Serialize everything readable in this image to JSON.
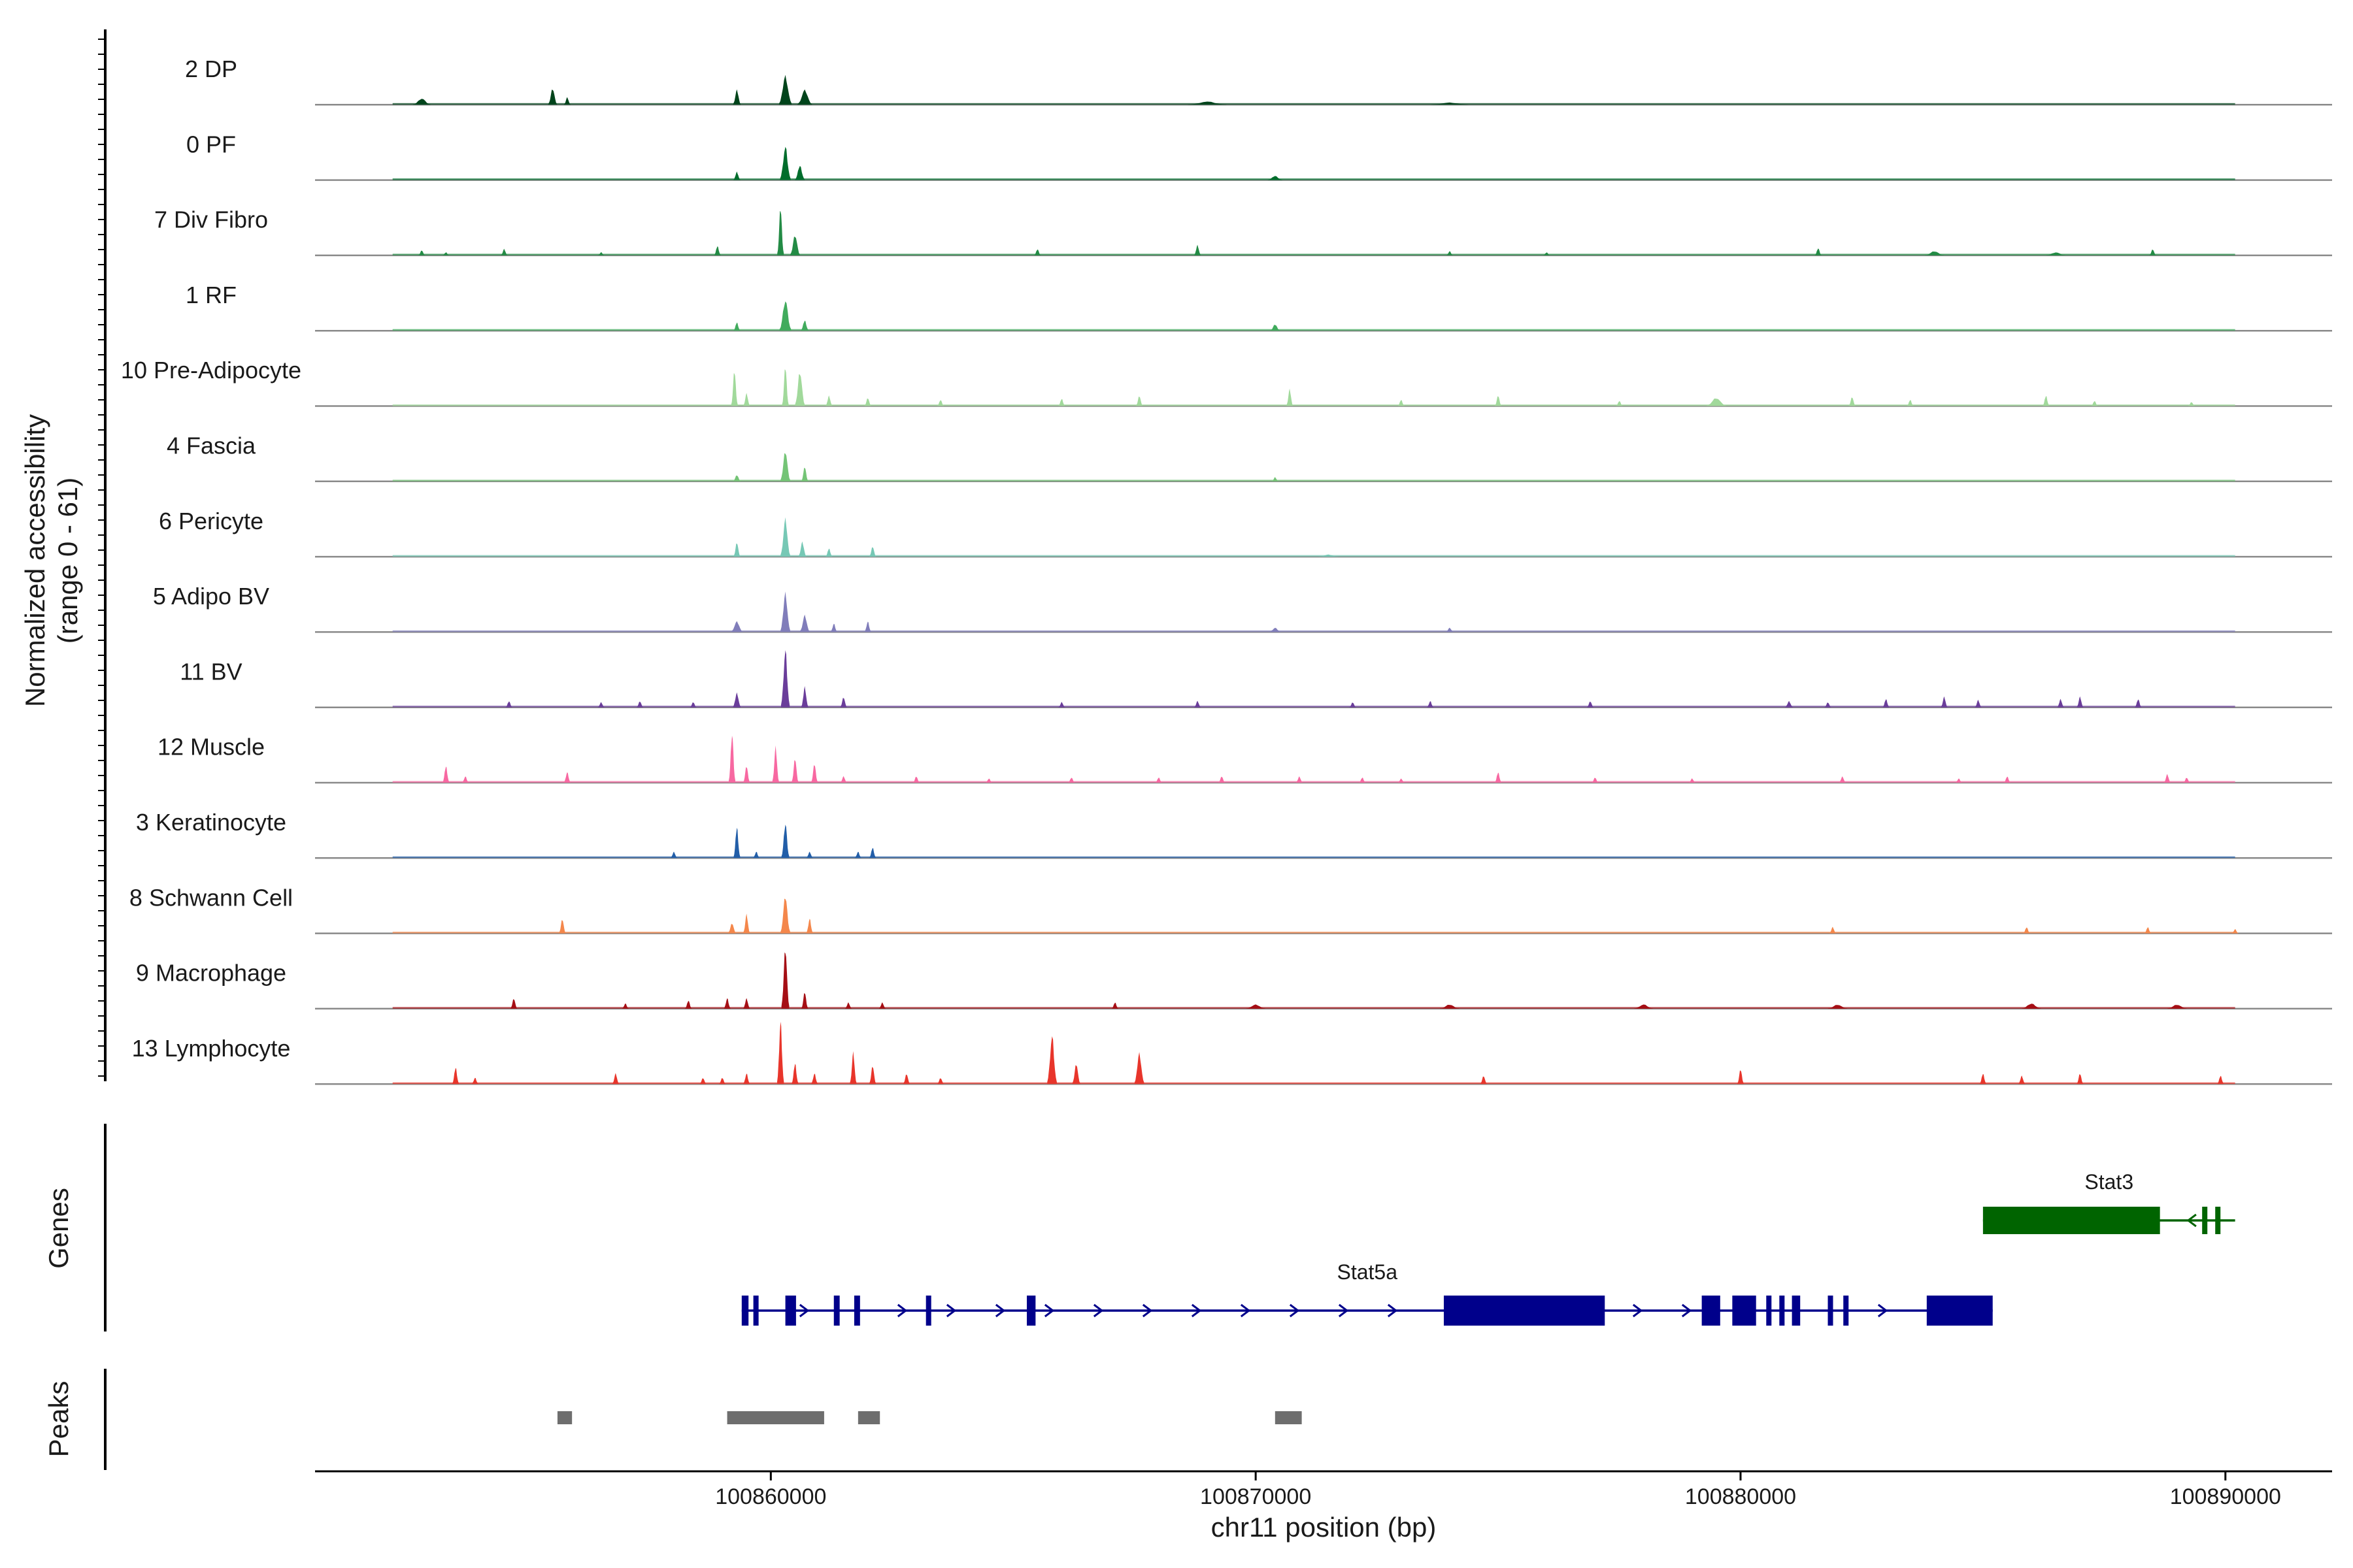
{
  "chart_data": {
    "type": "area",
    "title": "",
    "ylabel_line1": "Normalized accessibility",
    "ylabel_line2": "(range 0 - 61)",
    "y_range": [
      0,
      61
    ],
    "xlabel": "chr11 position (bp)",
    "x_range": [
      100850600,
      100892200
    ],
    "x_ticks": [
      {
        "value": 100860000,
        "label": "100860000"
      },
      {
        "value": 100870000,
        "label": "100870000"
      },
      {
        "value": 100880000,
        "label": "100880000"
      },
      {
        "value": 100890000,
        "label": "100890000"
      }
    ],
    "tracks": [
      {
        "name": "2 DP",
        "color": "#00441b",
        "peaks": [
          [
            100852800,
            180,
            6
          ],
          [
            100855500,
            90,
            16
          ],
          [
            100855800,
            60,
            7
          ],
          [
            100859300,
            80,
            14
          ],
          [
            100860300,
            130,
            28
          ],
          [
            100860700,
            150,
            14
          ],
          [
            100869000,
            400,
            3
          ],
          [
            100874000,
            400,
            2
          ]
        ]
      },
      {
        "name": "0 PF",
        "color": "#006d2c",
        "peaks": [
          [
            100859300,
            70,
            8
          ],
          [
            100860300,
            110,
            32
          ],
          [
            100860600,
            100,
            14
          ],
          [
            100870400,
            150,
            4
          ]
        ]
      },
      {
        "name": "7 Div Fibro",
        "color": "#238b45",
        "peaks": [
          [
            100852800,
            40,
            5
          ],
          [
            100853300,
            40,
            3
          ],
          [
            100854500,
            40,
            6
          ],
          [
            100856500,
            40,
            3
          ],
          [
            100858900,
            50,
            9
          ],
          [
            100860200,
            40,
            46
          ],
          [
            100860500,
            100,
            20
          ],
          [
            100865500,
            40,
            6
          ],
          [
            100868800,
            40,
            10
          ],
          [
            100874000,
            40,
            4
          ],
          [
            100876000,
            40,
            3
          ],
          [
            100881600,
            60,
            7
          ],
          [
            100884000,
            200,
            4
          ],
          [
            100886500,
            200,
            3
          ],
          [
            100888500,
            40,
            6
          ]
        ]
      },
      {
        "name": "1 RF",
        "color": "#41ab5d",
        "peaks": [
          [
            100859300,
            50,
            8
          ],
          [
            100860300,
            120,
            30
          ],
          [
            100860700,
            80,
            10
          ],
          [
            100870400,
            100,
            6
          ]
        ]
      },
      {
        "name": "10 Pre-Adipocyte",
        "color": "#a1d99b",
        "peaks": [
          [
            100859250,
            60,
            34
          ],
          [
            100859500,
            40,
            12
          ],
          [
            100860300,
            60,
            38
          ],
          [
            100860600,
            100,
            34
          ],
          [
            100861200,
            60,
            10
          ],
          [
            100862000,
            40,
            8
          ],
          [
            100863500,
            40,
            6
          ],
          [
            100866000,
            40,
            7
          ],
          [
            100867600,
            40,
            10
          ],
          [
            100870700,
            60,
            16
          ],
          [
            100873000,
            40,
            6
          ],
          [
            100875000,
            40,
            10
          ],
          [
            100877500,
            40,
            5
          ],
          [
            100879500,
            200,
            8
          ],
          [
            100882300,
            40,
            9
          ],
          [
            100883500,
            40,
            6
          ],
          [
            100886300,
            40,
            10
          ],
          [
            100887300,
            40,
            5
          ],
          [
            100889300,
            40,
            4
          ]
        ]
      },
      {
        "name": "4 Fascia",
        "color": "#74c476",
        "peaks": [
          [
            100859300,
            80,
            6
          ],
          [
            100860300,
            100,
            30
          ],
          [
            100860700,
            70,
            14
          ],
          [
            100870400,
            60,
            4
          ]
        ]
      },
      {
        "name": "6 Pericyte",
        "color": "#76c8b5",
        "peaks": [
          [
            100859300,
            60,
            14
          ],
          [
            100860300,
            100,
            36
          ],
          [
            100860650,
            80,
            14
          ],
          [
            100861200,
            50,
            8
          ],
          [
            100862100,
            50,
            10
          ],
          [
            100871500,
            200,
            2
          ]
        ]
      },
      {
        "name": "5 Adipo BV",
        "color": "#807dba",
        "peaks": [
          [
            100859300,
            120,
            10
          ],
          [
            100860300,
            100,
            38
          ],
          [
            100860700,
            100,
            16
          ],
          [
            100861300,
            60,
            8
          ],
          [
            100862000,
            60,
            10
          ],
          [
            100870400,
            120,
            4
          ],
          [
            100874000,
            80,
            4
          ]
        ]
      },
      {
        "name": "11 BV",
        "color": "#6a3d9a",
        "peaks": [
          [
            100854600,
            40,
            6
          ],
          [
            100856500,
            40,
            5
          ],
          [
            100857300,
            40,
            6
          ],
          [
            100858400,
            40,
            5
          ],
          [
            100859300,
            80,
            14
          ],
          [
            100860300,
            90,
            55
          ],
          [
            100860700,
            70,
            20
          ],
          [
            100861500,
            40,
            10
          ],
          [
            100866000,
            40,
            5
          ],
          [
            100868800,
            40,
            6
          ],
          [
            100872000,
            40,
            5
          ],
          [
            100873600,
            40,
            6
          ],
          [
            100876900,
            40,
            6
          ],
          [
            100881000,
            80,
            6
          ],
          [
            100881800,
            60,
            5
          ],
          [
            100883000,
            60,
            8
          ],
          [
            100884200,
            60,
            10
          ],
          [
            100884900,
            60,
            7
          ],
          [
            100886600,
            60,
            8
          ],
          [
            100887000,
            60,
            10
          ],
          [
            100888200,
            60,
            8
          ]
        ]
      },
      {
        "name": "12 Muscle",
        "color": "#f768a1",
        "peaks": [
          [
            100853300,
            60,
            16
          ],
          [
            100853700,
            40,
            6
          ],
          [
            100855800,
            50,
            10
          ],
          [
            100859200,
            60,
            48
          ],
          [
            100859500,
            40,
            16
          ],
          [
            100860100,
            50,
            34
          ],
          [
            100860500,
            60,
            24
          ],
          [
            100860900,
            60,
            18
          ],
          [
            100861500,
            40,
            6
          ],
          [
            100863000,
            40,
            6
          ],
          [
            100864500,
            40,
            4
          ],
          [
            100866200,
            40,
            5
          ],
          [
            100868000,
            40,
            5
          ],
          [
            100869300,
            40,
            6
          ],
          [
            100870900,
            60,
            6
          ],
          [
            100872200,
            40,
            5
          ],
          [
            100873000,
            40,
            4
          ],
          [
            100875000,
            60,
            10
          ],
          [
            100877000,
            40,
            5
          ],
          [
            100879000,
            40,
            4
          ],
          [
            100882100,
            40,
            6
          ],
          [
            100884500,
            40,
            4
          ],
          [
            100885500,
            40,
            6
          ],
          [
            100888800,
            60,
            8
          ],
          [
            100889200,
            40,
            5
          ]
        ]
      },
      {
        "name": "3 Keratinocyte",
        "color": "#225ea8",
        "peaks": [
          [
            100858000,
            40,
            6
          ],
          [
            100859300,
            60,
            30
          ],
          [
            100859700,
            40,
            6
          ],
          [
            100860300,
            80,
            34
          ],
          [
            100860800,
            60,
            6
          ],
          [
            100861800,
            40,
            6
          ],
          [
            100862100,
            40,
            10
          ]
        ]
      },
      {
        "name": "8 Schwann Cell",
        "color": "#f4874b",
        "peaks": [
          [
            100855700,
            60,
            14
          ],
          [
            100859200,
            80,
            10
          ],
          [
            100859500,
            60,
            18
          ],
          [
            100860300,
            100,
            36
          ],
          [
            100860800,
            60,
            14
          ],
          [
            100881900,
            40,
            6
          ],
          [
            100885900,
            40,
            6
          ],
          [
            100888400,
            60,
            6
          ],
          [
            100890200,
            40,
            4
          ]
        ]
      },
      {
        "name": "9 Macrophage",
        "color": "#a50f15",
        "peaks": [
          [
            100854700,
            40,
            10
          ],
          [
            100857000,
            40,
            5
          ],
          [
            100858300,
            40,
            8
          ],
          [
            100859100,
            60,
            10
          ],
          [
            100859500,
            40,
            10
          ],
          [
            100860300,
            80,
            60
          ],
          [
            100860700,
            60,
            16
          ],
          [
            100861600,
            60,
            6
          ],
          [
            100862300,
            60,
            6
          ],
          [
            100867100,
            40,
            6
          ],
          [
            100870000,
            200,
            4
          ],
          [
            100874000,
            200,
            4
          ],
          [
            100878000,
            200,
            4
          ],
          [
            100882000,
            200,
            4
          ],
          [
            100886000,
            200,
            5
          ],
          [
            100889000,
            200,
            4
          ]
        ]
      },
      {
        "name": "13 Lymphocyte",
        "color": "#e8352b",
        "peaks": [
          [
            100853500,
            50,
            16
          ],
          [
            100853900,
            40,
            6
          ],
          [
            100856800,
            60,
            10
          ],
          [
            100858600,
            40,
            6
          ],
          [
            100859000,
            40,
            6
          ],
          [
            100859500,
            60,
            10
          ],
          [
            100860200,
            70,
            60
          ],
          [
            100860500,
            60,
            20
          ],
          [
            100860900,
            60,
            10
          ],
          [
            100861700,
            60,
            30
          ],
          [
            100862100,
            60,
            18
          ],
          [
            100862800,
            40,
            10
          ],
          [
            100863500,
            40,
            6
          ],
          [
            100865800,
            100,
            46
          ],
          [
            100866300,
            80,
            20
          ],
          [
            100867600,
            100,
            30
          ],
          [
            100874700,
            60,
            8
          ],
          [
            100880000,
            60,
            14
          ],
          [
            100885000,
            40,
            10
          ],
          [
            100885800,
            40,
            8
          ],
          [
            100887000,
            40,
            10
          ],
          [
            100889900,
            40,
            8
          ]
        ]
      }
    ],
    "genes": [
      {
        "name": "Stat3",
        "color": "#006400",
        "start": 100885000,
        "end": 100890200,
        "strand": "-",
        "exons": [
          [
            100885000,
            100888650
          ],
          [
            100889520,
            100889600
          ],
          [
            100889790,
            100889840
          ]
        ]
      },
      {
        "name": "Stat5a",
        "color": "#00008b",
        "start": 100859400,
        "end": 100885200,
        "strand": "+",
        "exons": [
          [
            100859400,
            100859540
          ],
          [
            100859640,
            100859700
          ],
          [
            100860300,
            100860520
          ],
          [
            100861300,
            100861420
          ],
          [
            100861720,
            100861840
          ],
          [
            100863200,
            100863260
          ],
          [
            100865280,
            100865460
          ],
          [
            100873880,
            100877200
          ],
          [
            100879200,
            100879580
          ],
          [
            100879830,
            100880320
          ],
          [
            100880530,
            100880610
          ],
          [
            100880800,
            100880880
          ],
          [
            100881060,
            100881230
          ],
          [
            100881800,
            100881850
          ],
          [
            100882120,
            100882170
          ],
          [
            100883840,
            100885200
          ]
        ]
      }
    ],
    "peaks_track": [
      [
        100855600,
        100855900
      ],
      [
        100859100,
        100861100
      ],
      [
        100861800,
        100862250
      ],
      [
        100870400,
        100870950
      ]
    ],
    "side_labels": {
      "genes": "Genes",
      "peaks": "Peaks"
    }
  }
}
